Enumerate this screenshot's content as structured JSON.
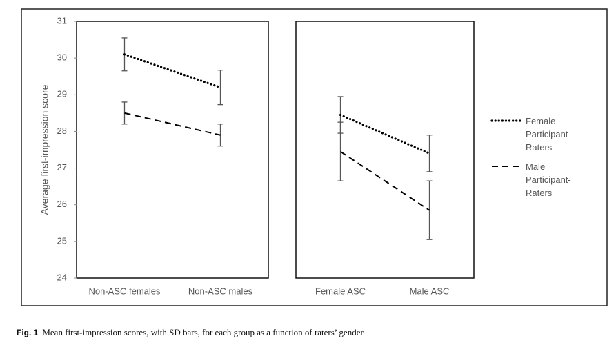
{
  "chart_data": [
    {
      "type": "line",
      "ylabel": "Average first-impression score",
      "ylim": [
        24,
        31
      ],
      "yticks": [
        24,
        25,
        26,
        27,
        28,
        29,
        30,
        31
      ],
      "categories": [
        "Non-ASC females",
        "Non-ASC males"
      ],
      "series": [
        {
          "name": "Female Participant-Raters",
          "color": "#000000",
          "linestyle": "dotted",
          "values": [
            30.1,
            29.2
          ],
          "errors": [
            0.45,
            0.47
          ]
        },
        {
          "name": "Male Participant-Raters",
          "color": "#000000",
          "linestyle": "dashed",
          "values": [
            28.5,
            27.9
          ],
          "errors": [
            0.3,
            0.3
          ]
        }
      ]
    },
    {
      "type": "line",
      "ylim": [
        24,
        31
      ],
      "categories": [
        "Female ASC",
        "Male ASC"
      ],
      "series": [
        {
          "color": "#000000",
          "linestyle": "dotted",
          "values": [
            28.45,
            27.4
          ],
          "errors": [
            0.5,
            0.5
          ]
        },
        {
          "color": "#000000",
          "linestyle": "dashed",
          "values": [
            27.45,
            25.85
          ],
          "errors": [
            0.8,
            0.8
          ]
        }
      ]
    }
  ],
  "caption": {
    "label": "Fig. 1",
    "text": "Mean first-impression scores, with SD bars, for each group as a function of raters’ gender"
  }
}
